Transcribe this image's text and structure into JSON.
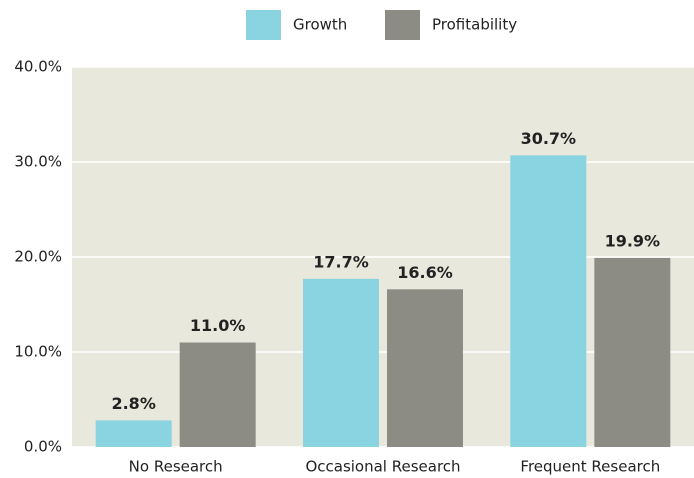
{
  "chart_data": {
    "type": "bar",
    "categories": [
      "No Research",
      "Occasional Research",
      "Frequent Research"
    ],
    "series": [
      {
        "name": "Growth",
        "color": "#8ad4e2",
        "values": [
          2.8,
          17.7,
          30.7
        ],
        "value_labels": [
          "2.8%",
          "17.7%",
          "30.7%"
        ]
      },
      {
        "name": "Profitability",
        "color": "#8c8c84",
        "values": [
          11.0,
          16.6,
          19.9
        ],
        "value_labels": [
          "11.0%",
          "16.6%",
          "19.9%"
        ]
      }
    ],
    "ylim": [
      0,
      40
    ],
    "yticks": [
      {
        "value": 0,
        "label": "0.0%"
      },
      {
        "value": 10,
        "label": "10.0%"
      },
      {
        "value": 20,
        "label": "20.0%"
      },
      {
        "value": 30,
        "label": "30.0%"
      },
      {
        "value": 40,
        "label": "40.0%"
      }
    ],
    "grid": true,
    "legend": "top",
    "background": "#e8e8dc"
  }
}
